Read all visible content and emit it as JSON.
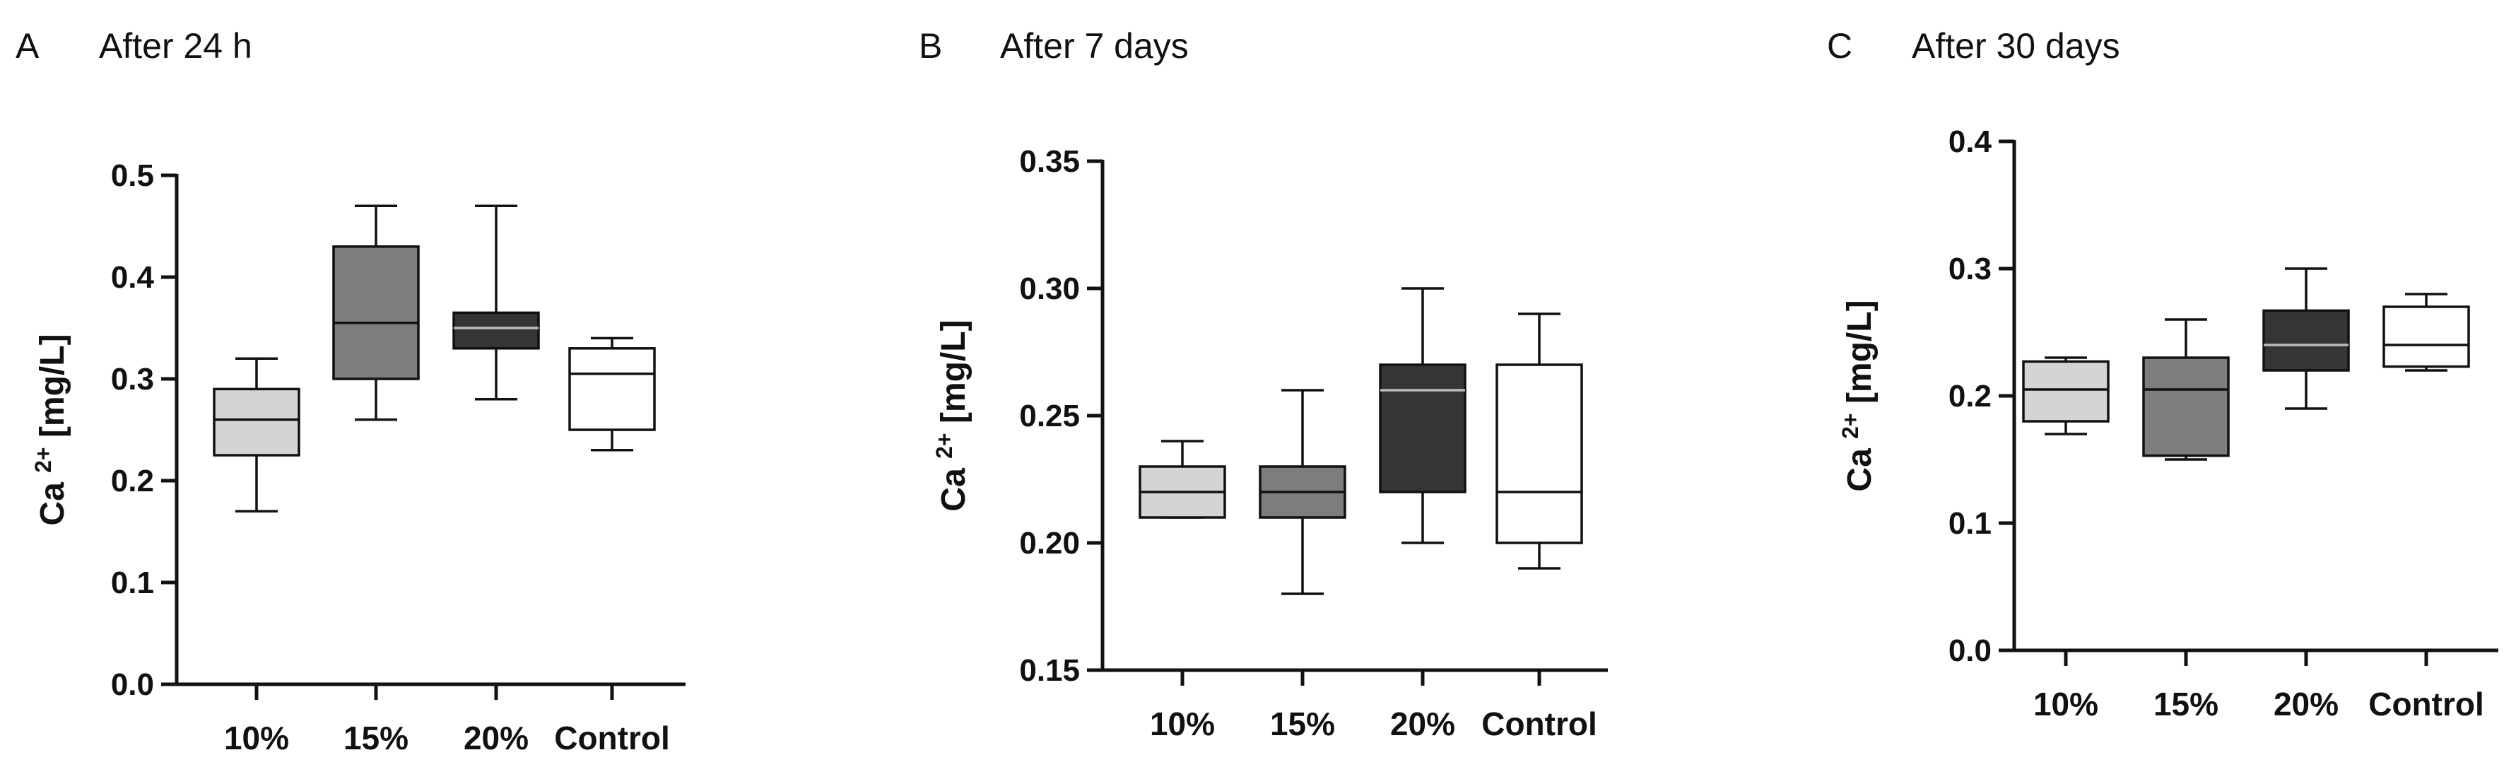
{
  "chart_data": [
    {
      "type": "box",
      "panel": "A",
      "title": "After 24 h",
      "ylabel": "Ca",
      "ylabel_sup": "2+",
      "ylabel_unit": "[mg/L]",
      "ylim": [
        0.0,
        0.5
      ],
      "yticks": [
        "0.0",
        "0.1",
        "0.2",
        "0.3",
        "0.4",
        "0.5"
      ],
      "categories": [
        "10%",
        "15%",
        "20%",
        "Control"
      ],
      "fills": [
        "#d4d4d4",
        "#7d7d7d",
        "#353535",
        "#ffffff"
      ],
      "boxes": [
        {
          "min": 0.17,
          "q1": 0.225,
          "median": 0.26,
          "q3": 0.29,
          "max": 0.32
        },
        {
          "min": 0.26,
          "q1": 0.3,
          "median": 0.355,
          "q3": 0.43,
          "max": 0.47
        },
        {
          "min": 0.28,
          "q1": 0.33,
          "median": 0.35,
          "q3": 0.365,
          "max": 0.47
        },
        {
          "min": 0.23,
          "q1": 0.25,
          "median": 0.305,
          "q3": 0.33,
          "max": 0.34
        }
      ]
    },
    {
      "type": "box",
      "panel": "B",
      "title": "After 7 days",
      "ylabel": "Ca",
      "ylabel_sup": "2+",
      "ylabel_unit": "[mg/L]",
      "ylim": [
        0.15,
        0.35
      ],
      "yticks": [
        "0.15",
        "0.20",
        "0.25",
        "0.30",
        "0.35"
      ],
      "categories": [
        "10%",
        "15%",
        "20%",
        "Control"
      ],
      "fills": [
        "#d4d4d4",
        "#7d7d7d",
        "#353535",
        "#ffffff"
      ],
      "boxes": [
        {
          "min": 0.21,
          "q1": 0.21,
          "median": 0.22,
          "q3": 0.23,
          "max": 0.24
        },
        {
          "min": 0.18,
          "q1": 0.21,
          "median": 0.22,
          "q3": 0.23,
          "max": 0.26
        },
        {
          "min": 0.2,
          "q1": 0.22,
          "median": 0.26,
          "q3": 0.27,
          "max": 0.3
        },
        {
          "min": 0.19,
          "q1": 0.2,
          "median": 0.22,
          "q3": 0.27,
          "max": 0.29
        }
      ]
    },
    {
      "type": "box",
      "panel": "C",
      "title": "After 30 days",
      "ylabel": "Ca",
      "ylabel_sup": "2+",
      "ylabel_unit": "[mg/L]",
      "ylim": [
        0.0,
        0.4
      ],
      "yticks": [
        "0.0",
        "0.1",
        "0.2",
        "0.3",
        "0.4"
      ],
      "categories": [
        "10%",
        "15%",
        "20%",
        "Control"
      ],
      "fills": [
        "#d4d4d4",
        "#7d7d7d",
        "#353535",
        "#ffffff"
      ],
      "boxes": [
        {
          "min": 0.17,
          "q1": 0.18,
          "median": 0.205,
          "q3": 0.227,
          "max": 0.23
        },
        {
          "min": 0.15,
          "q1": 0.153,
          "median": 0.205,
          "q3": 0.23,
          "max": 0.26
        },
        {
          "min": 0.19,
          "q1": 0.22,
          "median": 0.24,
          "q3": 0.267,
          "max": 0.3
        },
        {
          "min": 0.22,
          "q1": 0.223,
          "median": 0.24,
          "q3": 0.27,
          "max": 0.28
        }
      ]
    }
  ]
}
